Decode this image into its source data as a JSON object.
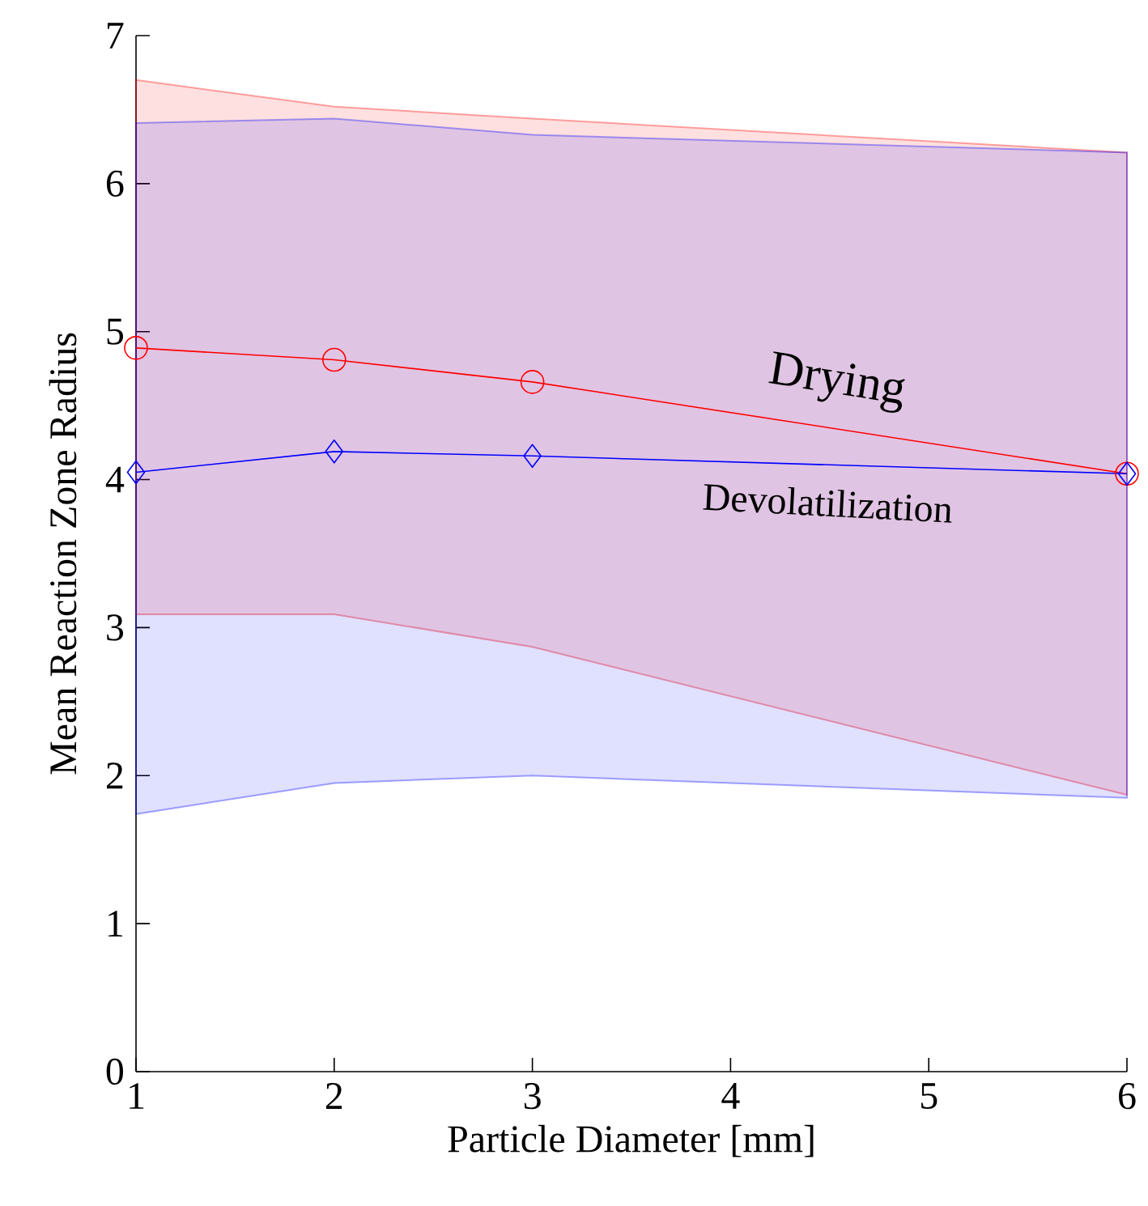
{
  "chart_data": {
    "type": "line",
    "xlabel": "Particle Diameter [mm]",
    "ylabel": "Mean Reaction Zone Radius",
    "x": [
      1,
      2,
      3,
      6
    ],
    "xlim": [
      1,
      6
    ],
    "ylim": [
      0,
      7
    ],
    "xticks": [
      1,
      2,
      3,
      4,
      5,
      6
    ],
    "yticks": [
      0,
      1,
      2,
      3,
      4,
      5,
      6,
      7
    ],
    "grid": false,
    "series": [
      {
        "name": "Drying",
        "color": "#ff0000",
        "marker": "circle",
        "values": [
          4.89,
          4.81,
          4.66,
          4.04
        ],
        "lower": [
          3.09,
          3.09,
          2.87,
          1.87
        ],
        "upper": [
          6.7,
          6.52,
          6.44,
          6.21
        ]
      },
      {
        "name": "Devolatilization",
        "color": "#0000ff",
        "marker": "diamond",
        "values": [
          4.05,
          4.19,
          4.16,
          4.04
        ],
        "lower": [
          1.74,
          1.95,
          2.0,
          1.85
        ],
        "upper": [
          6.41,
          6.44,
          6.33,
          6.21
        ]
      }
    ]
  }
}
